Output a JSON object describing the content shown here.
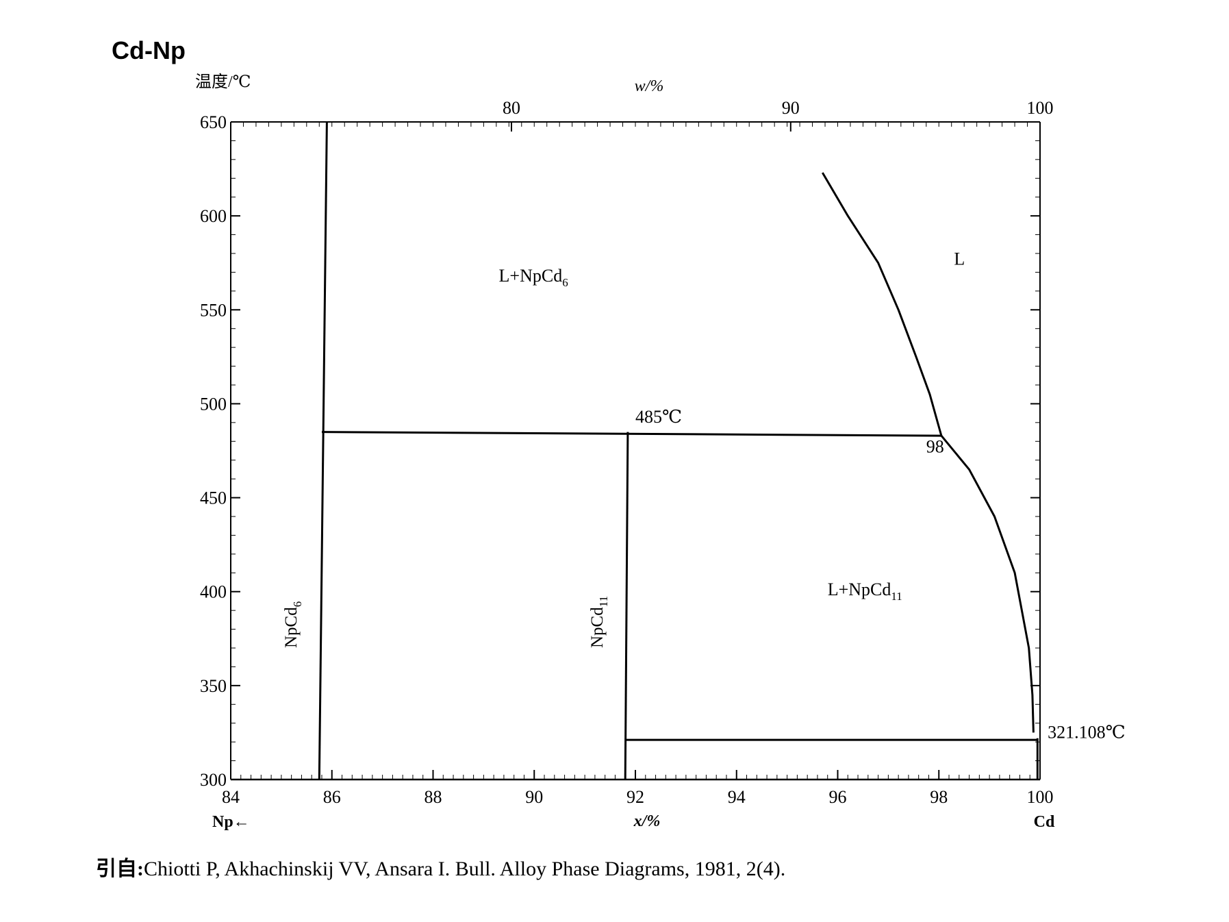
{
  "chart_data": {
    "type": "phase-diagram",
    "title": "Cd-Np",
    "ylabel": "温度/℃",
    "xlabel": "x/%",
    "top_xlabel": "w/%",
    "left_component": "Np←",
    "right_component": "Cd",
    "xlim": [
      84,
      100
    ],
    "ylim": [
      300,
      650
    ],
    "x_ticks": [
      84,
      86,
      88,
      90,
      92,
      94,
      96,
      98,
      100
    ],
    "y_ticks": [
      300,
      350,
      400,
      450,
      500,
      550,
      600,
      650
    ],
    "top_ticks_w": [
      {
        "label": "80",
        "x_at": 89.55
      },
      {
        "label": "90",
        "x_at": 95.07
      },
      {
        "label": "100",
        "x_at": 100
      }
    ],
    "lines": [
      {
        "name": "NpCd6 compound line",
        "points": [
          [
            85.75,
            300
          ],
          [
            85.9,
            650
          ]
        ]
      },
      {
        "name": "peritectic isotherm 485C",
        "points": [
          [
            85.8,
            485
          ],
          [
            98.05,
            483
          ]
        ]
      },
      {
        "name": "NpCd11 compound line",
        "points": [
          [
            91.8,
            300
          ],
          [
            91.85,
            485
          ]
        ]
      },
      {
        "name": "eutectic isotherm 321.108C",
        "points": [
          [
            91.8,
            321.108
          ],
          [
            99.95,
            321.108
          ]
        ]
      },
      {
        "name": "Cd terminal line",
        "points": [
          [
            99.95,
            300
          ],
          [
            99.95,
            322
          ]
        ]
      },
      {
        "name": "liquidus above peritectic",
        "points": [
          [
            95.7,
            623
          ],
          [
            96.2,
            600
          ],
          [
            96.8,
            575
          ],
          [
            97.2,
            550
          ],
          [
            97.55,
            525
          ],
          [
            97.82,
            505
          ],
          [
            98.05,
            483
          ]
        ]
      },
      {
        "name": "liquidus below peritectic",
        "points": [
          [
            98.05,
            483
          ],
          [
            98.6,
            465
          ],
          [
            99.1,
            440
          ],
          [
            99.5,
            410
          ],
          [
            99.78,
            370
          ],
          [
            99.85,
            345
          ],
          [
            99.87,
            325
          ]
        ]
      }
    ],
    "labels": [
      {
        "text": "L+NpCd6",
        "main": "L+NpCd",
        "sub": "6",
        "x": 89.3,
        "y": 565
      },
      {
        "text": "L",
        "x": 98.3,
        "y": 574
      },
      {
        "text": "L+NpCd11",
        "main": "L+NpCd",
        "sub": "11",
        "x": 95.8,
        "y": 398
      },
      {
        "text": "NpCd6",
        "main": "NpCd",
        "sub": "6",
        "x": 85.3,
        "y": 370,
        "rotate": true
      },
      {
        "text": "NpCd11",
        "main": "NpCd",
        "sub": "11",
        "x": 91.35,
        "y": 370,
        "rotate": true
      },
      {
        "text": "485℃",
        "x": 92.0,
        "y": 490
      },
      {
        "text": "98",
        "x": 97.75,
        "y": 474
      },
      {
        "text": "321.108℃",
        "x": 100.15,
        "y": 322
      }
    ]
  },
  "source": {
    "prefix": "引自:",
    "text": "Chiotti P, Akhachinskij VV, Ansara I. Bull. Alloy Phase Diagrams, 1981, 2(4)."
  }
}
